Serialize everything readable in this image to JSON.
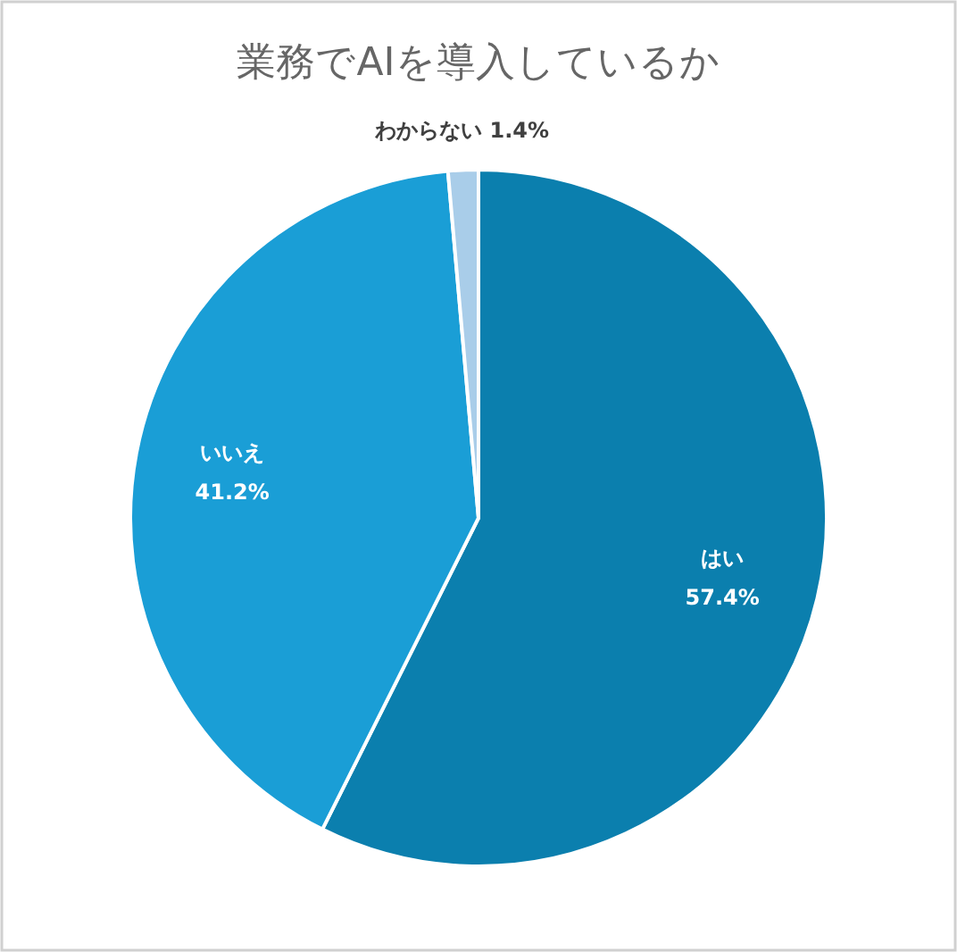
{
  "chart_data": {
    "type": "pie",
    "title": "業務でAIを導入しているか",
    "categories": [
      "はい",
      "いいえ",
      "わからない"
    ],
    "values": [
      57.4,
      41.2,
      1.4
    ],
    "value_labels": [
      "57.4%",
      "41.2%",
      "1.4%"
    ],
    "colors": [
      "#0b7fae",
      "#1a9ed6",
      "#a9cde9"
    ],
    "legend": false
  }
}
